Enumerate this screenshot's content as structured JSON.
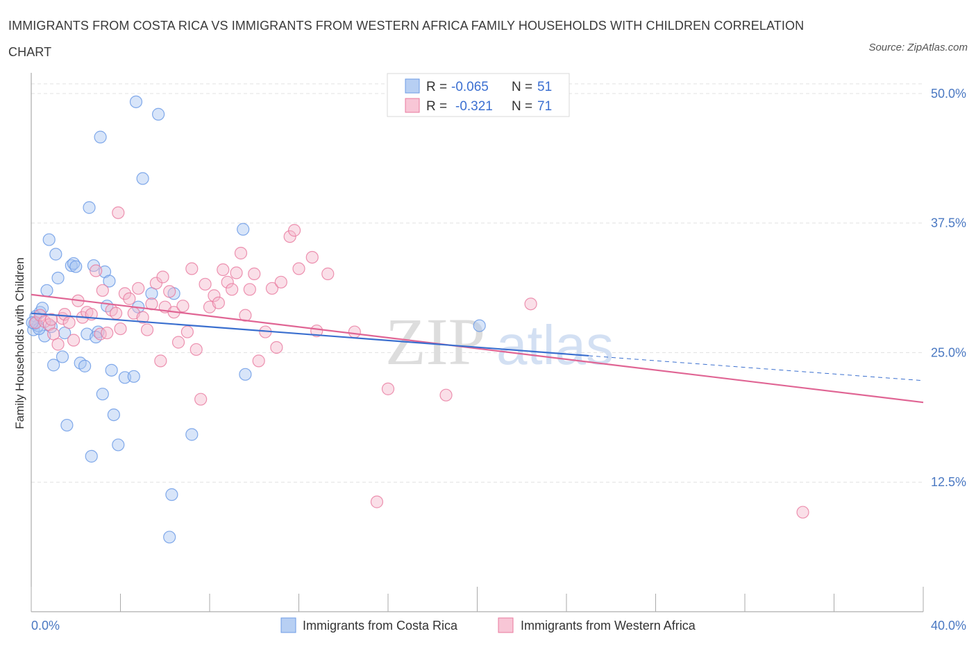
{
  "title": "IMMIGRANTS FROM COSTA RICA VS IMMIGRANTS FROM WESTERN AFRICA FAMILY HOUSEHOLDS WITH CHILDREN CORRELATION CHART",
  "source": "Source: ZipAtlas.com",
  "colors": {
    "blue": "#6c9be6",
    "blue_fill": "#a9c6f2",
    "pink": "#e9789e",
    "pink_fill": "#f5b8cb",
    "blue_line": "#3a6fcf",
    "pink_line": "#e06594"
  },
  "chart_data": {
    "type": "scatter",
    "title": "IMMIGRANTS FROM COSTA RICA VS IMMIGRANTS FROM WESTERN AFRICA FAMILY HOUSEHOLDS WITH CHILDREN CORRELATION CHART",
    "xlabel": "",
    "ylabel": "Family Households with Children",
    "xlim": [
      0,
      40
    ],
    "ylim": [
      0,
      52
    ],
    "x_tick_labels": [
      {
        "value": 0,
        "label": "0.0%"
      },
      {
        "value": 40,
        "label": "40.0%"
      }
    ],
    "y_tick_labels": [
      {
        "value": 12.5,
        "label": "12.5%"
      },
      {
        "value": 25,
        "label": "25.0%"
      },
      {
        "value": 37.5,
        "label": "37.5%"
      },
      {
        "value": 50,
        "label": "50.0%"
      }
    ],
    "grid": true,
    "legend": {
      "placement": "top-center",
      "entries": [
        {
          "r_label": "R =",
          "r_value": "-0.065",
          "n_label": "N =",
          "n_value": "51"
        },
        {
          "r_label": "R =",
          "r_value": "-0.321",
          "n_label": "N =",
          "n_value": "71"
        }
      ]
    },
    "bottom_legend": [
      "Immigrants from Costa Rica",
      "Immigrants from Western Africa"
    ],
    "series": [
      {
        "name": "Immigrants from Costa Rica",
        "color": "#6c9be6",
        "trend": {
          "x0": 0,
          "y0": 28.8,
          "x1": 25,
          "y1": 24.7,
          "dash_x1": 40,
          "dash_y1": 22.3
        },
        "points": [
          [
            0.1,
            27.2
          ],
          [
            0.2,
            28.5
          ],
          [
            0.3,
            27.6
          ],
          [
            0.4,
            28.9
          ],
          [
            0.5,
            29.3
          ],
          [
            0.6,
            26.6
          ],
          [
            0.7,
            31.0
          ],
          [
            0.8,
            35.9
          ],
          [
            1.0,
            23.8
          ],
          [
            1.1,
            34.5
          ],
          [
            1.2,
            32.2
          ],
          [
            1.4,
            24.6
          ],
          [
            1.6,
            18.0
          ],
          [
            1.8,
            33.4
          ],
          [
            1.9,
            33.6
          ],
          [
            2.0,
            33.3
          ],
          [
            2.2,
            24.0
          ],
          [
            2.4,
            23.7
          ],
          [
            2.5,
            26.8
          ],
          [
            2.6,
            39.0
          ],
          [
            2.7,
            15.0
          ],
          [
            2.8,
            33.4
          ],
          [
            3.0,
            27.0
          ],
          [
            3.1,
            45.8
          ],
          [
            3.2,
            21.0
          ],
          [
            3.3,
            32.8
          ],
          [
            3.4,
            29.5
          ],
          [
            3.5,
            31.9
          ],
          [
            3.6,
            23.3
          ],
          [
            3.7,
            19.0
          ],
          [
            3.9,
            16.1
          ],
          [
            4.2,
            22.6
          ],
          [
            4.6,
            22.7
          ],
          [
            4.7,
            49.2
          ],
          [
            4.8,
            29.4
          ],
          [
            5.0,
            41.8
          ],
          [
            5.4,
            30.7
          ],
          [
            5.7,
            48.0
          ],
          [
            6.2,
            7.2
          ],
          [
            6.3,
            11.3
          ],
          [
            6.4,
            30.7
          ],
          [
            7.2,
            17.1
          ],
          [
            9.5,
            36.9
          ],
          [
            9.6,
            22.9
          ],
          [
            20.1,
            27.6
          ],
          [
            0.15,
            27.8
          ],
          [
            0.35,
            27.3
          ],
          [
            0.9,
            27.5
          ],
          [
            2.9,
            26.5
          ],
          [
            1.5,
            26.9
          ],
          [
            0.05,
            27.9
          ]
        ]
      },
      {
        "name": "Immigrants from Western Africa",
        "color": "#e9789e",
        "trend": {
          "x0": 0,
          "y0": 30.6,
          "x1": 40,
          "y1": 20.2
        },
        "points": [
          [
            0.2,
            27.9
          ],
          [
            0.4,
            28.6
          ],
          [
            0.6,
            28.0
          ],
          [
            0.8,
            27.7
          ],
          [
            1.0,
            26.8
          ],
          [
            1.2,
            25.8
          ],
          [
            1.4,
            28.3
          ],
          [
            1.5,
            28.7
          ],
          [
            1.7,
            27.9
          ],
          [
            1.9,
            26.2
          ],
          [
            2.1,
            30.0
          ],
          [
            2.3,
            28.4
          ],
          [
            2.5,
            28.9
          ],
          [
            2.7,
            28.7
          ],
          [
            2.9,
            32.9
          ],
          [
            3.1,
            26.8
          ],
          [
            3.2,
            31.0
          ],
          [
            3.4,
            26.9
          ],
          [
            3.6,
            29.1
          ],
          [
            3.8,
            28.8
          ],
          [
            4.0,
            27.3
          ],
          [
            4.2,
            30.7
          ],
          [
            4.4,
            30.2
          ],
          [
            4.6,
            28.8
          ],
          [
            4.8,
            31.2
          ],
          [
            5.0,
            28.4
          ],
          [
            5.2,
            27.2
          ],
          [
            5.4,
            29.7
          ],
          [
            5.6,
            31.7
          ],
          [
            5.8,
            24.2
          ],
          [
            5.9,
            32.3
          ],
          [
            6.0,
            29.4
          ],
          [
            6.2,
            30.9
          ],
          [
            6.4,
            28.9
          ],
          [
            6.6,
            26.0
          ],
          [
            6.8,
            29.5
          ],
          [
            7.0,
            27.0
          ],
          [
            7.2,
            33.1
          ],
          [
            7.4,
            25.3
          ],
          [
            7.6,
            20.5
          ],
          [
            7.8,
            31.6
          ],
          [
            8.0,
            29.4
          ],
          [
            8.2,
            30.5
          ],
          [
            8.4,
            29.8
          ],
          [
            8.6,
            33.0
          ],
          [
            8.8,
            31.8
          ],
          [
            9.0,
            31.1
          ],
          [
            9.2,
            32.7
          ],
          [
            9.4,
            34.6
          ],
          [
            9.6,
            28.6
          ],
          [
            9.8,
            31.1
          ],
          [
            10.0,
            32.6
          ],
          [
            10.2,
            24.2
          ],
          [
            10.5,
            27.0
          ],
          [
            10.8,
            31.2
          ],
          [
            11.0,
            25.5
          ],
          [
            11.2,
            31.8
          ],
          [
            11.6,
            36.2
          ],
          [
            11.8,
            36.8
          ],
          [
            12.0,
            33.1
          ],
          [
            12.6,
            34.2
          ],
          [
            12.8,
            27.1
          ],
          [
            13.3,
            32.6
          ],
          [
            14.5,
            27.0
          ],
          [
            15.5,
            10.6
          ],
          [
            16.0,
            21.5
          ],
          [
            18.6,
            20.9
          ],
          [
            22.4,
            29.7
          ],
          [
            34.6,
            9.6
          ],
          [
            3.9,
            38.5
          ],
          [
            0.9,
            28.2
          ]
        ]
      }
    ]
  },
  "watermark": {
    "zip": "ZIP",
    "atlas": "atlas"
  }
}
